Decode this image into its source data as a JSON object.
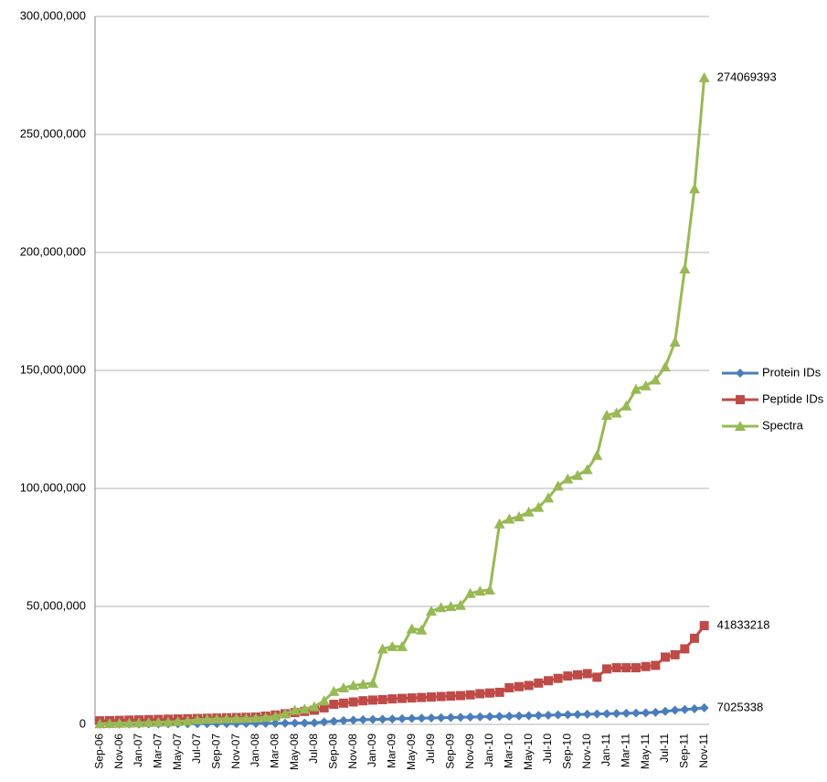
{
  "chart_data": {
    "type": "line",
    "categories": [
      "Sep-06",
      null,
      "Nov-06",
      null,
      "Jan-07",
      null,
      "Mar-07",
      null,
      "May-07",
      null,
      "Jul-07",
      null,
      "Sep-07",
      null,
      "Nov-07",
      null,
      "Jan-08",
      null,
      "Mar-08",
      null,
      "May-08",
      null,
      "Jul-08",
      null,
      "Sep-08",
      null,
      "Nov-08",
      null,
      "Jan-09",
      null,
      "Mar-09",
      null,
      "May-09",
      null,
      "Jul-09",
      null,
      "Sep-09",
      null,
      "Nov-09",
      null,
      "Jan-10",
      null,
      "Mar-10",
      null,
      "May-10",
      null,
      "Jul-10",
      null,
      "Sep-10",
      null,
      "Nov-10",
      null,
      "Jan-11",
      null,
      "Mar-11",
      null,
      "May-11",
      null,
      "Jul-11",
      null,
      "Sep-11",
      null,
      "Nov-11"
    ],
    "series": [
      {
        "name": "Protein IDs",
        "color": "#4a7ebb",
        "marker": "diamond",
        "values": [
          100000,
          100000,
          120000,
          140000,
          160000,
          180000,
          200000,
          220000,
          240000,
          260000,
          280000,
          300000,
          320000,
          340000,
          360000,
          380000,
          400000,
          420000,
          450000,
          500000,
          550000,
          600000,
          700000,
          1000000,
          1300000,
          1600000,
          1800000,
          2000000,
          2100000,
          2200000,
          2300000,
          2400000,
          2500000,
          2600000,
          2700000,
          2800000,
          2900000,
          3000000,
          3100000,
          3200000,
          3300000,
          3400000,
          3500000,
          3600000,
          3700000,
          3800000,
          3900000,
          4000000,
          4100000,
          4200000,
          4300000,
          4400000,
          4500000,
          4600000,
          4700000,
          4800000,
          4900000,
          5100000,
          5500000,
          6000000,
          6300000,
          6600000,
          7025338
        ]
      },
      {
        "name": "Peptide IDs",
        "color": "#be4b48",
        "marker": "square",
        "values": [
          1500000,
          1600000,
          1700000,
          1800000,
          1900000,
          2000000,
          2100000,
          2200000,
          2300000,
          2400000,
          2500000,
          2600000,
          2700000,
          2800000,
          2900000,
          3000000,
          3100000,
          3500000,
          4000000,
          4500000,
          5000000,
          5500000,
          6000000,
          7000000,
          8500000,
          9000000,
          9500000,
          10000000,
          10300000,
          10500000,
          10800000,
          11000000,
          11200000,
          11400000,
          11600000,
          11800000,
          12000000,
          12200000,
          12500000,
          13000000,
          13300000,
          13600000,
          15500000,
          16000000,
          16500000,
          17500000,
          18500000,
          19500000,
          20500000,
          21000000,
          21500000,
          20000000,
          23500000,
          24000000,
          24000000,
          24000000,
          24500000,
          25000000,
          28500000,
          29500000,
          32000000,
          36500000,
          41833218
        ]
      },
      {
        "name": "Spectra",
        "color": "#98b954",
        "marker": "triangle",
        "values": [
          300000,
          400000,
          500000,
          600000,
          700000,
          800000,
          900000,
          1000000,
          1200000,
          1500000,
          2000000,
          2200000,
          2300000,
          2400000,
          2500000,
          2600000,
          2700000,
          3000000,
          3500000,
          4500000,
          6000000,
          6500000,
          7500000,
          10000000,
          14000000,
          15500000,
          16500000,
          17000000,
          17500000,
          32000000,
          33000000,
          33000000,
          40500000,
          40000000,
          48000000,
          49500000,
          50000000,
          50500000,
          55500000,
          56500000,
          57000000,
          85000000,
          87000000,
          88000000,
          90000000,
          92000000,
          96000000,
          101000000,
          104000000,
          105500000,
          108000000,
          114000000,
          131000000,
          132000000,
          135000000,
          142000000,
          143500000,
          146000000,
          151500000,
          162000000,
          193000000,
          227000000,
          274069393
        ]
      }
    ],
    "ylim": [
      0,
      300000000
    ],
    "yticks": [
      {
        "value": 0,
        "label": "0"
      },
      {
        "value": 50000000,
        "label": "50,000,000"
      },
      {
        "value": 100000000,
        "label": "100,000,000"
      },
      {
        "value": 150000000,
        "label": "150,000,000"
      },
      {
        "value": 200000000,
        "label": "200,000,000"
      },
      {
        "value": 250000000,
        "label": "250,000,000"
      },
      {
        "value": 300000000,
        "label": "300,000,000"
      }
    ],
    "grid": true,
    "legend": "right"
  }
}
